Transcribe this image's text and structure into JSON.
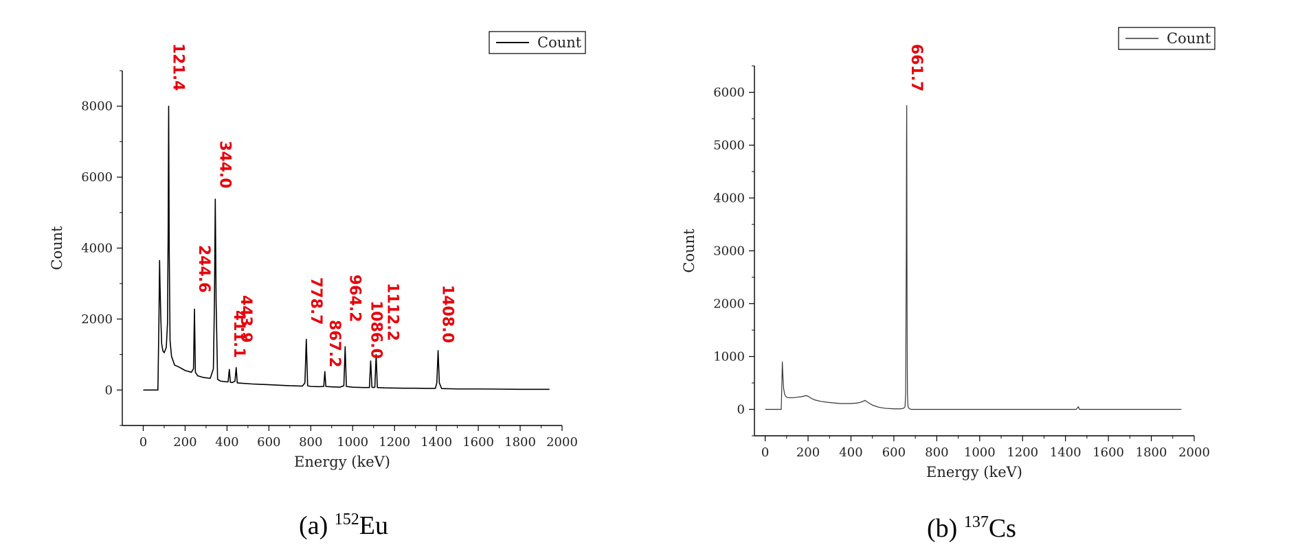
{
  "chart_data": [
    {
      "type": "line",
      "caption": "(a)",
      "caption_isotope_mass": "152",
      "caption_isotope_symbol": "Eu",
      "xlabel": "Energy (keV)",
      "ylabel": "Count",
      "xlim": [
        -100,
        2000
      ],
      "ylim": [
        -1000,
        9000
      ],
      "xticks": [
        0,
        200,
        400,
        600,
        800,
        1000,
        1200,
        1400,
        1600,
        1800,
        2000
      ],
      "yticks": [
        0,
        2000,
        4000,
        6000,
        8000
      ],
      "legend": {
        "label": "Count",
        "position": "top-right"
      },
      "series_color": "#000000",
      "label_color": "#e8000b",
      "series": [
        {
          "name": "Count",
          "x": [
            0,
            70,
            75,
            78,
            80,
            84,
            88,
            94,
            100,
            110,
            116,
            119,
            121.4,
            124,
            128,
            135,
            150,
            170,
            200,
            230,
            240,
            244.6,
            249,
            260,
            290,
            320,
            335,
            340,
            344,
            348,
            355,
            370,
            400,
            405,
            411.1,
            416,
            425,
            438,
            443.9,
            449,
            470,
            520,
            600,
            700,
            760,
            772,
            778.7,
            785,
            800,
            840,
            862,
            867.2,
            872,
            900,
            940,
            958,
            964.2,
            970,
            1000,
            1050,
            1080,
            1086,
            1092,
            1100,
            1106,
            1112.2,
            1118,
            1150,
            1200,
            1250,
            1300,
            1350,
            1395,
            1402,
            1408,
            1414,
            1425,
            1500,
            1600,
            1700,
            1800,
            1940
          ],
          "y": [
            0,
            0,
            2000,
            3650,
            3000,
            2000,
            1300,
            1100,
            1050,
            1200,
            1900,
            4500,
            8000,
            4000,
            1400,
            950,
            700,
            650,
            550,
            500,
            600,
            2280,
            500,
            400,
            350,
            330,
            600,
            2500,
            5380,
            2500,
            300,
            250,
            230,
            230,
            580,
            220,
            210,
            250,
            630,
            200,
            190,
            170,
            150,
            120,
            110,
            200,
            1430,
            120,
            100,
            95,
            100,
            520,
            100,
            90,
            80,
            120,
            1220,
            100,
            80,
            70,
            70,
            820,
            80,
            70,
            80,
            1000,
            70,
            60,
            55,
            50,
            50,
            45,
            45,
            200,
            1110,
            200,
            40,
            30,
            30,
            25,
            20,
            20
          ]
        }
      ],
      "peak_labels": [
        "121.4",
        "244.6",
        "344.0",
        "411.1",
        "443.9",
        "778.7",
        "867.2",
        "964.2",
        "1086.0",
        "1112.2",
        "1408.0"
      ],
      "peak_energies": [
        121.4,
        244.6,
        344.0,
        411.1,
        443.9,
        778.7,
        867.2,
        964.2,
        1086.0,
        1112.2,
        1408.0
      ]
    },
    {
      "type": "line",
      "caption": "(b)",
      "caption_isotope_mass": "137",
      "caption_isotope_symbol": "Cs",
      "xlabel": "Energy (keV)",
      "ylabel": "Count",
      "xlim": [
        -50,
        2000
      ],
      "ylim": [
        -500,
        6500
      ],
      "xticks": [
        0,
        200,
        400,
        600,
        800,
        1000,
        1200,
        1400,
        1600,
        1800,
        2000
      ],
      "yticks": [
        0,
        1000,
        2000,
        3000,
        4000,
        5000,
        6000
      ],
      "legend": {
        "label": "Count",
        "position": "top-right"
      },
      "series_color": "#333333",
      "label_color": "#e8000b",
      "series": [
        {
          "name": "Count",
          "x": [
            0,
            75,
            78,
            80,
            83,
            86,
            90,
            95,
            100,
            110,
            130,
            150,
            170,
            190,
            200,
            210,
            230,
            260,
            300,
            350,
            400,
            430,
            450,
            465,
            480,
            500,
            530,
            560,
            600,
            630,
            645,
            652,
            655,
            658,
            659,
            660,
            661,
            661.7,
            662.5,
            663.5,
            665,
            667,
            670,
            675,
            680,
            700,
            800,
            1000,
            1200,
            1450,
            1460,
            1465,
            1470,
            1480,
            1600,
            1800,
            1940
          ],
          "y": [
            0,
            0,
            500,
            900,
            600,
            400,
            300,
            250,
            230,
            220,
            220,
            230,
            240,
            260,
            250,
            220,
            180,
            150,
            130,
            110,
            110,
            120,
            140,
            170,
            130,
            80,
            40,
            20,
            10,
            10,
            20,
            50,
            300,
            3050,
            5000,
            5750,
            3000,
            1800,
            800,
            300,
            100,
            40,
            20,
            10,
            0,
            0,
            0,
            0,
            0,
            0,
            50,
            0,
            0,
            0,
            0,
            0,
            0
          ]
        }
      ],
      "peak_labels": [
        "661.7"
      ],
      "peak_energies": [
        661.7
      ]
    }
  ]
}
